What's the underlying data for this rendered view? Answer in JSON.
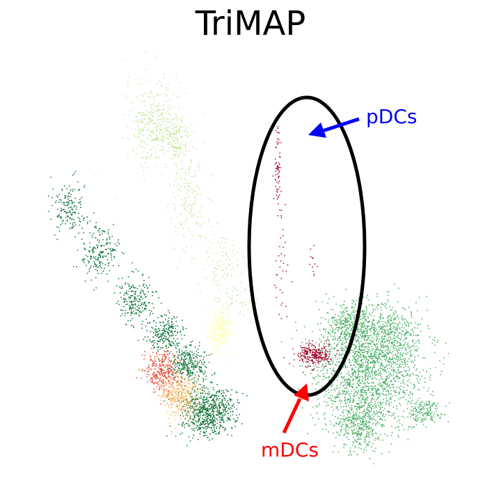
{
  "chart_data": {
    "type": "scatter",
    "title": "TriMAP",
    "xlabel": "",
    "ylabel": "",
    "grid": false,
    "axes_visible": false,
    "xlim": [
      0,
      100
    ],
    "ylim": [
      0,
      100
    ],
    "clusters": [
      {
        "color": "#c2e699",
        "points": [
          {
            "x": 28,
            "y": 83,
            "sx": 3,
            "sy": 5,
            "n": 320
          },
          {
            "x": 33,
            "y": 79,
            "sx": 2,
            "sy": 3,
            "n": 180
          },
          {
            "x": 36,
            "y": 65,
            "sx": 2,
            "sy": 6,
            "n": 160
          },
          {
            "x": 43,
            "y": 50,
            "sx": 2,
            "sy": 4,
            "n": 90
          },
          {
            "x": 47,
            "y": 42,
            "sx": 2,
            "sy": 2,
            "n": 50
          }
        ]
      },
      {
        "color": "#006d2c",
        "points": [
          {
            "x": 9,
            "y": 63,
            "sx": 2,
            "sy": 3,
            "n": 160
          },
          {
            "x": 16,
            "y": 53,
            "sx": 2,
            "sy": 3,
            "n": 200
          },
          {
            "x": 24,
            "y": 42,
            "sx": 2,
            "sy": 3,
            "n": 220
          },
          {
            "x": 31,
            "y": 34,
            "sx": 2,
            "sy": 2,
            "n": 220
          },
          {
            "x": 36,
            "y": 27,
            "sx": 2,
            "sy": 2,
            "n": 300
          },
          {
            "x": 40,
            "y": 16,
            "sx": 3,
            "sy": 3,
            "n": 700
          }
        ]
      },
      {
        "color": "#e34a33",
        "points": [
          {
            "x": 30,
            "y": 25,
            "sx": 1.8,
            "sy": 2.4,
            "n": 320
          }
        ]
      },
      {
        "color": "#fdb863",
        "points": [
          {
            "x": 34,
            "y": 20,
            "sx": 2.2,
            "sy": 2.6,
            "n": 380
          }
        ]
      },
      {
        "color": "#ffffb2",
        "points": [
          {
            "x": 43,
            "y": 35,
            "sx": 1.2,
            "sy": 2.2,
            "n": 320
          }
        ]
      },
      {
        "color": "#41ab5d",
        "points": [
          {
            "x": 76,
            "y": 25,
            "sx": 6,
            "sy": 6,
            "n": 1600
          },
          {
            "x": 73,
            "y": 36,
            "sx": 3,
            "sy": 3,
            "n": 450
          },
          {
            "x": 82,
            "y": 33,
            "sx": 3,
            "sy": 4,
            "n": 400
          },
          {
            "x": 74,
            "y": 13,
            "sx": 3,
            "sy": 3,
            "n": 400
          },
          {
            "x": 89,
            "y": 16,
            "sx": 2,
            "sy": 1.5,
            "n": 160
          }
        ]
      },
      {
        "color": "#a50026",
        "points": [
          {
            "x": 64,
            "y": 29,
            "sx": 2,
            "sy": 1.3,
            "n": 260
          },
          {
            "x": 56,
            "y": 73,
            "sx": 0.4,
            "sy": 5,
            "n": 70
          },
          {
            "x": 57,
            "y": 50,
            "sx": 0.8,
            "sy": 7,
            "n": 35
          },
          {
            "x": 64,
            "y": 50,
            "sx": 0.6,
            "sy": 2,
            "n": 12
          }
        ]
      }
    ],
    "annotations": [
      {
        "text": "pDCs",
        "color": "#0000ff"
      },
      {
        "text": "mDCs",
        "color": "#ff0000"
      }
    ]
  }
}
